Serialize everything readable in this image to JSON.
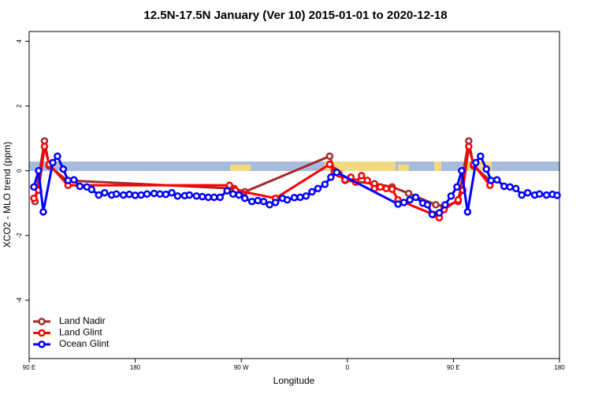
{
  "chart_data": {
    "type": "line",
    "title": "12.5N-17.5N January (Ver 10)   2015-01-01 to 2020-12-18",
    "x_label": "Longitude",
    "y_label": "XCO2 - MLO trend (ppm)",
    "xlim": [
      90,
      540
    ],
    "ylim": [
      -5.8,
      4.3
    ],
    "xticks": [
      {
        "value": 90,
        "label": "90 E"
      },
      {
        "value": 180,
        "label": "180"
      },
      {
        "value": 270,
        "label": "90 W"
      },
      {
        "value": 360,
        "label": "0"
      },
      {
        "value": 450,
        "label": "90 E"
      },
      {
        "value": 540,
        "label": "180"
      }
    ],
    "yticks": [
      -4,
      -2,
      0,
      2,
      4
    ],
    "legend": "bottom-left",
    "series": [
      {
        "name": "Land Nadir",
        "color": "#a52a2a",
        "x": [
          95,
          103,
          107,
          122,
          264,
          273,
          345,
          349,
          358,
          383,
          398,
          412,
          435,
          442,
          454,
          463,
          467,
          481
        ],
        "values": [
          -0.95,
          0.92,
          0.15,
          -0.3,
          -0.55,
          -0.65,
          0.45,
          0,
          -0.3,
          -0.4,
          -0.5,
          -0.7,
          -1.05,
          -1.1,
          -0.95,
          0.92,
          0.15,
          -0.3
        ]
      },
      {
        "name": "Land Glint",
        "color": "#ff0000",
        "x": [
          94,
          98,
          103,
          107,
          123,
          260,
          265,
          299,
          345,
          349,
          353,
          358,
          363,
          367,
          372,
          377,
          383,
          388,
          393,
          398,
          403,
          433,
          438,
          442,
          454,
          458,
          463,
          467,
          481
        ],
        "values": [
          -0.85,
          -0.6,
          0.75,
          0.2,
          -0.45,
          -0.45,
          -0.6,
          -0.85,
          0.2,
          -0.05,
          -0.1,
          -0.28,
          -0.2,
          -0.35,
          -0.15,
          -0.3,
          -0.55,
          -0.5,
          -0.55,
          -0.57,
          -0.9,
          -1.35,
          -1.45,
          -1.2,
          -0.9,
          -0.6,
          0.75,
          0.2,
          -0.45
        ]
      },
      {
        "name": "Ocean Glint",
        "color": "#0000ff",
        "x": [
          94,
          98,
          102,
          110,
          114,
          119,
          123,
          128,
          133,
          139,
          143,
          149,
          154,
          160,
          164,
          170,
          175,
          180,
          185,
          190,
          196,
          201,
          206,
          211,
          216,
          222,
          226,
          232,
          237,
          242,
          247,
          252,
          258,
          263,
          268,
          273,
          279,
          284,
          289,
          294,
          299,
          305,
          309,
          315,
          320,
          325,
          330,
          335,
          341,
          346,
          351,
          403,
          408,
          413,
          418,
          424,
          428,
          432,
          438,
          443,
          448,
          453,
          457,
          462,
          469,
          473,
          478,
          482,
          487,
          493,
          498,
          503,
          508,
          513,
          519,
          523,
          529,
          534,
          538
        ],
        "values": [
          -0.5,
          0.0,
          -1.27,
          0.25,
          0.45,
          0.05,
          -0.3,
          -0.28,
          -0.48,
          -0.5,
          -0.58,
          -0.75,
          -0.68,
          -0.75,
          -0.72,
          -0.75,
          -0.73,
          -0.76,
          -0.75,
          -0.72,
          -0.7,
          -0.72,
          -0.73,
          -0.68,
          -0.78,
          -0.77,
          -0.75,
          -0.78,
          -0.8,
          -0.82,
          -0.82,
          -0.82,
          -0.62,
          -0.72,
          -0.75,
          -0.85,
          -0.95,
          -0.92,
          -0.95,
          -1.05,
          -0.98,
          -0.85,
          -0.9,
          -0.83,
          -0.82,
          -0.78,
          -0.65,
          -0.55,
          -0.42,
          -0.2,
          -0.05,
          -1.03,
          -0.98,
          -0.9,
          -0.82,
          -1.0,
          -1.05,
          -1.35,
          -1.3,
          -1.05,
          -0.78,
          -0.5,
          0.0,
          -1.27,
          0.25,
          0.45,
          0.05,
          -0.3,
          -0.28,
          -0.48,
          -0.5,
          -0.55,
          -0.75,
          -0.68,
          -0.75,
          -0.72,
          -0.75,
          -0.73,
          -0.76
        ]
      }
    ]
  }
}
